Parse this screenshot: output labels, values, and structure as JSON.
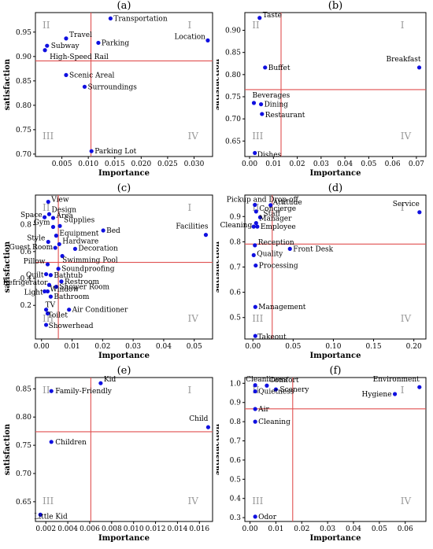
{
  "colors": {
    "point": "#1010e0",
    "reference": "#e05050",
    "quadrant_label": "#9a9a9a"
  },
  "chart_data": [
    {
      "type": "scatter",
      "title": "(a)",
      "xlabel": "Importance",
      "ylabel": "satisfaction",
      "xlim": [
        0.0,
        0.0335
      ],
      "ylim": [
        0.695,
        0.99
      ],
      "xticks": [
        0.005,
        0.01,
        0.015,
        0.02,
        0.025,
        0.03
      ],
      "xtick_labels": [
        "0.005",
        "0.010",
        "0.015",
        "0.020",
        "0.025",
        "0.030"
      ],
      "yticks": [
        0.7,
        0.75,
        0.8,
        0.85,
        0.9,
        0.95
      ],
      "ytick_labels": [
        "0.70",
        "0.75",
        "0.80",
        "0.85",
        "0.90",
        "0.95"
      ],
      "ref_x": 0.0105,
      "ref_y": 0.891,
      "quadrants": [
        "I",
        "II",
        "III",
        "IV"
      ],
      "points": [
        {
          "label": "Transportation",
          "x": 0.0142,
          "y": 0.978
        },
        {
          "label": "Travel",
          "x": 0.0058,
          "y": 0.937
        },
        {
          "label": "Parking",
          "x": 0.0119,
          "y": 0.928
        },
        {
          "label": "Location",
          "x": 0.0326,
          "y": 0.933
        },
        {
          "label": "Subway",
          "x": 0.0022,
          "y": 0.922
        },
        {
          "label": "High-Speed Rail",
          "x": 0.0018,
          "y": 0.913
        },
        {
          "label": "Scenic Areal",
          "x": 0.0058,
          "y": 0.862
        },
        {
          "label": "Surroundings",
          "x": 0.0093,
          "y": 0.838
        },
        {
          "label": "Parking Lot",
          "x": 0.0106,
          "y": 0.706
        }
      ]
    },
    {
      "type": "scatter",
      "title": "(b)",
      "xlabel": "Importance",
      "ylabel": "satisfaction",
      "xlim": [
        -0.002,
        0.074
      ],
      "ylim": [
        0.615,
        0.94
      ],
      "xticks": [
        0.0,
        0.01,
        0.02,
        0.03,
        0.04,
        0.05,
        0.06,
        0.07
      ],
      "xtick_labels": [
        "0.00",
        "0.01",
        "0.02",
        "0.03",
        "0.04",
        "0.05",
        "0.06",
        "0.07"
      ],
      "yticks": [
        0.65,
        0.7,
        0.75,
        0.8,
        0.85,
        0.9
      ],
      "ytick_labels": [
        "0.65",
        "0.70",
        "0.75",
        "0.80",
        "0.85",
        "0.90"
      ],
      "ref_x": 0.0132,
      "ref_y": 0.766,
      "quadrants": [
        "I",
        "II",
        "III",
        "IV"
      ],
      "points": [
        {
          "label": "Taste",
          "x": 0.0042,
          "y": 0.928
        },
        {
          "label": "Breakfast",
          "x": 0.0712,
          "y": 0.816
        },
        {
          "label": "Buffet",
          "x": 0.0065,
          "y": 0.816
        },
        {
          "label": "Beverages",
          "x": 0.0018,
          "y": 0.736
        },
        {
          "label": "Dining",
          "x": 0.0048,
          "y": 0.733
        },
        {
          "label": "Restaurant",
          "x": 0.0052,
          "y": 0.711
        },
        {
          "label": "Dishes",
          "x": 0.0022,
          "y": 0.623
        }
      ]
    },
    {
      "type": "scatter",
      "title": "(c)",
      "xlabel": "Importance",
      "ylabel": "satisfaction",
      "xlim": [
        -0.002,
        0.056
      ],
      "ylim": [
        -0.05,
        1.02
      ],
      "xticks": [
        0.0,
        0.01,
        0.02,
        0.03,
        0.04,
        0.05
      ],
      "xtick_labels": [
        "0.00",
        "0.01",
        "0.02",
        "0.03",
        "0.04",
        "0.05"
      ],
      "yticks": [
        0.2,
        0.4,
        0.6,
        0.8
      ],
      "ytick_labels": [
        "0.2",
        "0.4",
        "0.6",
        "0.8"
      ],
      "ref_x": 0.0055,
      "ref_y": 0.52,
      "quadrants": [
        "I",
        "II",
        "III",
        "IV"
      ],
      "points": [
        {
          "label": "View",
          "x": 0.0022,
          "y": 0.97
        },
        {
          "label": "Design",
          "x": 0.0025,
          "y": 0.878
        },
        {
          "label": "Space",
          "x": 0.001,
          "y": 0.855
        },
        {
          "label": "Area",
          "x": 0.0038,
          "y": 0.85
        },
        {
          "label": "Supplies",
          "x": 0.006,
          "y": 0.79
        },
        {
          "label": "Gym",
          "x": 0.0038,
          "y": 0.783
        },
        {
          "label": "Bed",
          "x": 0.0202,
          "y": 0.757
        },
        {
          "label": "Facilities",
          "x": 0.0538,
          "y": 0.724
        },
        {
          "label": "Equipment",
          "x": 0.0048,
          "y": 0.718
        },
        {
          "label": "Style",
          "x": 0.0022,
          "y": 0.672
        },
        {
          "label": "Hardware",
          "x": 0.0058,
          "y": 0.655
        },
        {
          "label": "Guest Room",
          "x": 0.0045,
          "y": 0.628
        },
        {
          "label": "Decoration",
          "x": 0.011,
          "y": 0.62
        },
        {
          "label": "Swimming Pool",
          "x": 0.0068,
          "y": 0.567
        },
        {
          "label": "Pillow",
          "x": 0.002,
          "y": 0.505
        },
        {
          "label": "Soundproofing",
          "x": 0.0055,
          "y": 0.472
        },
        {
          "label": "Quilt",
          "x": 0.0015,
          "y": 0.432
        },
        {
          "label": "Bathtub",
          "x": 0.003,
          "y": 0.425
        },
        {
          "label": "Restroom",
          "x": 0.0065,
          "y": 0.378
        },
        {
          "label": "Refrigerator",
          "x": 0.0025,
          "y": 0.352
        },
        {
          "label": "Shower Room",
          "x": 0.0048,
          "y": 0.338
        },
        {
          "label": "Light",
          "x": 0.001,
          "y": 0.304
        },
        {
          "label": "Window",
          "x": 0.002,
          "y": 0.304
        },
        {
          "label": "Bathroom",
          "x": 0.003,
          "y": 0.265
        },
        {
          "label": "TV",
          "x": 0.0015,
          "y": 0.168
        },
        {
          "label": "Air Conditioner",
          "x": 0.009,
          "y": 0.168
        },
        {
          "label": "Toilet",
          "x": 0.002,
          "y": 0.14
        },
        {
          "label": "Showerhead",
          "x": 0.0015,
          "y": 0.055
        }
      ]
    },
    {
      "type": "scatter",
      "title": "(d)",
      "xlabel": "Importance",
      "ylabel": "satisfaction",
      "xlim": [
        -0.01,
        0.215
      ],
      "ylim": [
        0.415,
        0.985
      ],
      "xticks": [
        0.0,
        0.05,
        0.1,
        0.15,
        0.2
      ],
      "xtick_labels": [
        "0.00",
        "0.05",
        "0.10",
        "0.15",
        "0.20"
      ],
      "yticks": [
        0.5,
        0.6,
        0.7,
        0.8,
        0.9
      ],
      "ytick_labels": [
        "0.5",
        "0.6",
        "0.7",
        "0.8",
        "0.9"
      ],
      "ref_x": 0.024,
      "ref_y": 0.791,
      "quadrants": [
        "I",
        "II",
        "III",
        "IV"
      ],
      "points": [
        {
          "label": "Pickup and Drop-off",
          "x": 0.0025,
          "y": 0.946
        },
        {
          "label": "Attitude",
          "x": 0.022,
          "y": 0.945
        },
        {
          "label": "Service",
          "x": 0.207,
          "y": 0.917
        },
        {
          "label": "Concierge",
          "x": 0.004,
          "y": 0.92
        },
        {
          "label": "Staff",
          "x": 0.009,
          "y": 0.897
        },
        {
          "label": "Manager",
          "x": 0.004,
          "y": 0.874
        },
        {
          "label": "Cleaning",
          "x": 0.001,
          "y": 0.86
        },
        {
          "label": "Employee",
          "x": 0.0055,
          "y": 0.86
        },
        {
          "label": "Reception",
          "x": 0.0025,
          "y": 0.786
        },
        {
          "label": "Front Desk",
          "x": 0.046,
          "y": 0.772
        },
        {
          "label": "Quality",
          "x": 0.001,
          "y": 0.747
        },
        {
          "label": "Processing",
          "x": 0.0035,
          "y": 0.706
        },
        {
          "label": "Management",
          "x": 0.003,
          "y": 0.542
        },
        {
          "label": "Takeout",
          "x": 0.003,
          "y": 0.427
        }
      ]
    },
    {
      "type": "scatter",
      "title": "(e)",
      "xlabel": "Importance",
      "ylabel": "satisfaction",
      "xlim": [
        0.00105,
        0.0172
      ],
      "ylim": [
        0.615,
        0.87
      ],
      "xticks": [
        0.002,
        0.004,
        0.006,
        0.008,
        0.01,
        0.012,
        0.014,
        0.016
      ],
      "xtick_labels": [
        "0.002",
        "0.004",
        "0.006",
        "0.008",
        "0.010",
        "0.012",
        "0.014",
        "0.016"
      ],
      "yticks": [
        0.65,
        0.7,
        0.75,
        0.8,
        0.85
      ],
      "ytick_labels": [
        "0.65",
        "0.70",
        "0.75",
        "0.80",
        "0.85"
      ],
      "ref_x": 0.0061,
      "ref_y": 0.774,
      "quadrants": [
        "I",
        "II",
        "III",
        "IV"
      ],
      "points": [
        {
          "label": "Kid",
          "x": 0.007,
          "y": 0.86
        },
        {
          "label": "Family-Friendly",
          "x": 0.0025,
          "y": 0.846
        },
        {
          "label": "Child",
          "x": 0.0168,
          "y": 0.782
        },
        {
          "label": "Children",
          "x": 0.0025,
          "y": 0.756
        },
        {
          "label": "Little Kid",
          "x": 0.0015,
          "y": 0.627
        }
      ]
    },
    {
      "type": "scatter",
      "title": "(f)",
      "xlabel": "Importance",
      "ylabel": "satisfaction",
      "xlim": [
        -0.002,
        0.068
      ],
      "ylim": [
        0.28,
        1.03
      ],
      "xticks": [
        0.0,
        0.01,
        0.02,
        0.03,
        0.04,
        0.05,
        0.06
      ],
      "xtick_labels": [
        "0.00",
        "0.01",
        "0.02",
        "0.03",
        "0.04",
        "0.05",
        "0.06"
      ],
      "yticks": [
        0.3,
        0.4,
        0.5,
        0.6,
        0.7,
        0.8,
        0.9,
        1.0
      ],
      "ytick_labels": [
        "0.3",
        "0.4",
        "0.5",
        "0.6",
        "0.7",
        "0.8",
        "0.9",
        "1.0"
      ],
      "ref_x": 0.0165,
      "ref_y": 0.867,
      "quadrants": [
        "I",
        "II",
        "III",
        "IV"
      ],
      "points": [
        {
          "label": "Cleanliness",
          "x": 0.002,
          "y": 0.99
        },
        {
          "label": "Comfort",
          "x": 0.0065,
          "y": 0.988
        },
        {
          "label": "Environment",
          "x": 0.0655,
          "y": 0.98
        },
        {
          "label": "Scenery",
          "x": 0.01,
          "y": 0.968
        },
        {
          "label": "Quietness",
          "x": 0.002,
          "y": 0.958
        },
        {
          "label": "Hygiene",
          "x": 0.056,
          "y": 0.944
        },
        {
          "label": "Air",
          "x": 0.002,
          "y": 0.866
        },
        {
          "label": "Cleaning",
          "x": 0.002,
          "y": 0.8
        },
        {
          "label": "Odor",
          "x": 0.002,
          "y": 0.305
        }
      ]
    }
  ]
}
